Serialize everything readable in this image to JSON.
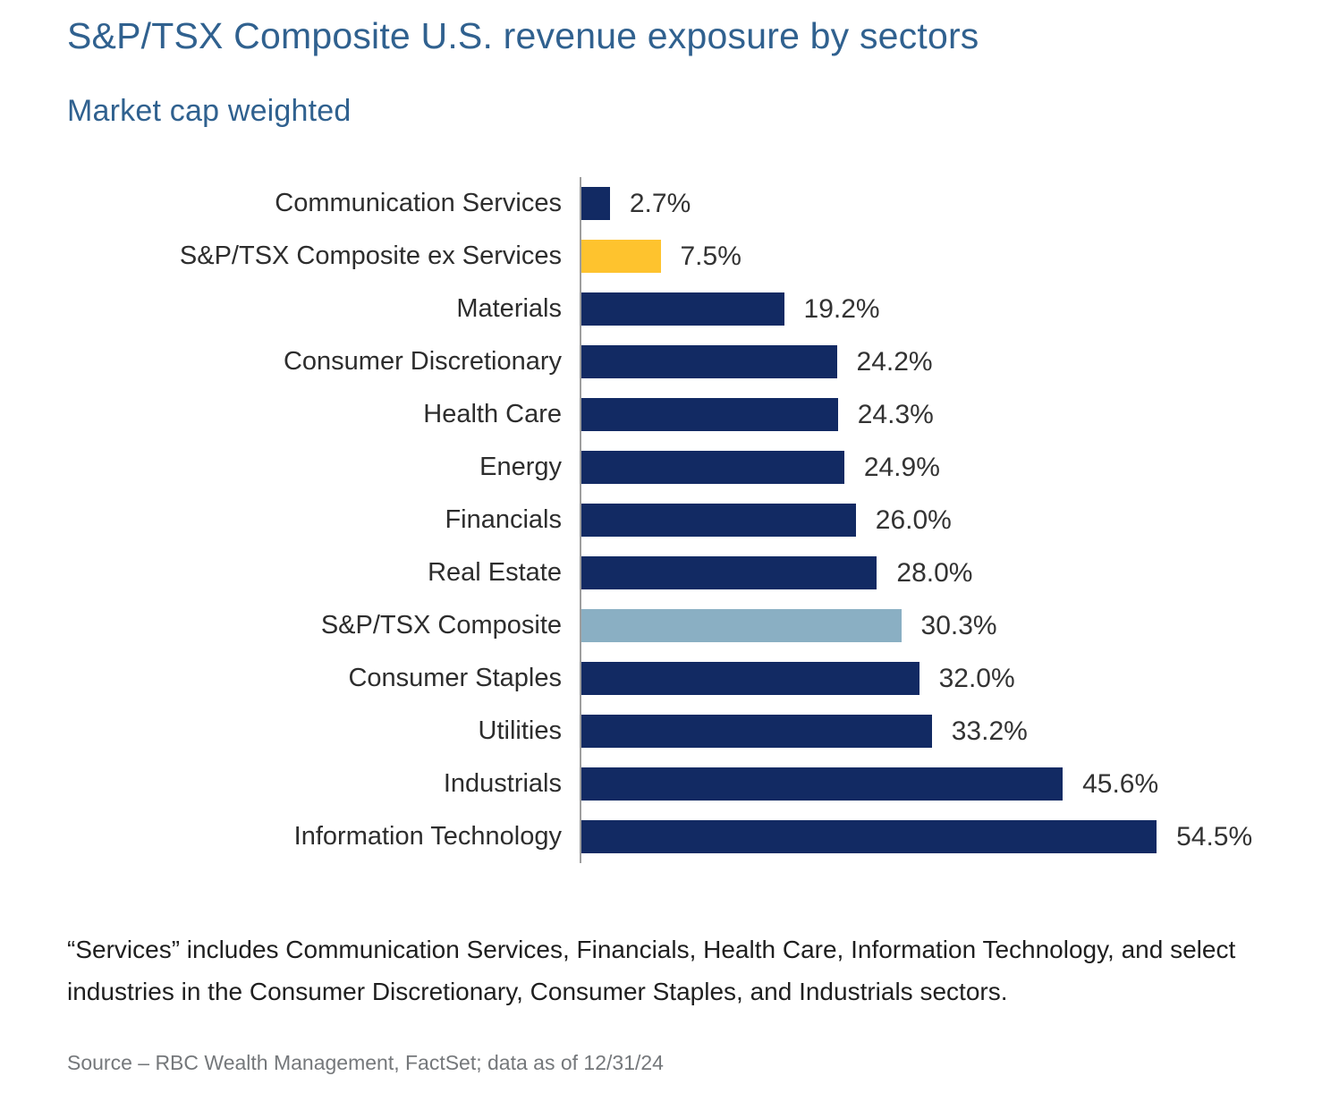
{
  "header": {
    "title": "S&P/TSX Composite U.S. revenue exposure by sectors",
    "subtitle": "Market cap weighted"
  },
  "chart_data": {
    "type": "bar",
    "orientation": "horizontal",
    "title": "S&P/TSX Composite U.S. revenue exposure by sectors",
    "subtitle": "Market cap weighted",
    "xlabel": "",
    "ylabel": "",
    "xlim": [
      0,
      60
    ],
    "grid": false,
    "legend": "none",
    "value_suffix": "%",
    "categories": [
      "Communication Services",
      "S&P/TSX Composite ex Services",
      "Materials",
      "Consumer Discretionary",
      "Health Care",
      "Energy",
      "Financials",
      "Real Estate",
      "S&P/TSX Composite",
      "Consumer Staples",
      "Utilities",
      "Industrials",
      "Information Technology"
    ],
    "values": [
      2.7,
      7.5,
      19.2,
      24.2,
      24.3,
      24.9,
      26.0,
      28.0,
      30.3,
      32.0,
      33.2,
      45.6,
      54.5
    ],
    "value_labels": [
      "2.7%",
      "7.5%",
      "19.2%",
      "24.2%",
      "24.3%",
      "24.9%",
      "26.0%",
      "28.0%",
      "30.3%",
      "32.0%",
      "33.2%",
      "45.6%",
      "54.5%"
    ],
    "bar_color_keys": [
      "navy",
      "gold",
      "navy",
      "navy",
      "navy",
      "navy",
      "navy",
      "navy",
      "light_blue",
      "navy",
      "navy",
      "navy",
      "navy"
    ],
    "colors": {
      "navy": "#122a63",
      "gold": "#fec32e",
      "light_blue": "#8aafc3",
      "axis_line": "#9e9e9e",
      "title_blue": "#30618f"
    }
  },
  "footnote": "“Services” includes Communication Services, Financials, Health Care, Information Technology, and select industries in the Consumer Discretionary, Consumer Staples, and Industrials sectors.",
  "source": "Source – RBC Wealth Management, FactSet; data as of 12/31/24"
}
